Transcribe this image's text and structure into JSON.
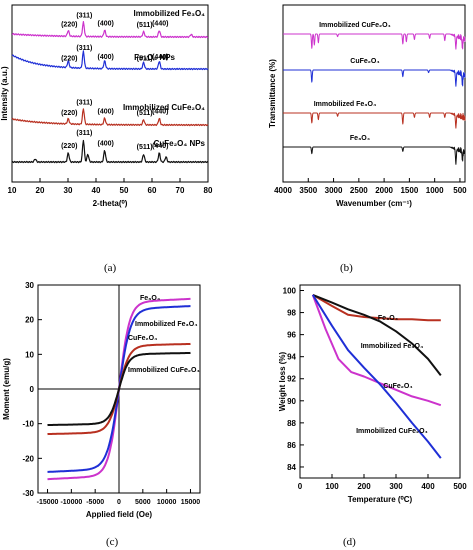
{
  "panel_labels": [
    "(a)",
    "(b)",
    "(c)",
    "(d)"
  ],
  "chart_data": [
    {
      "type": "line",
      "panel": "(a)",
      "xlabel": "2-theta(⁰)",
      "ylabel": "Intensity (a.u.)",
      "xlim": [
        10,
        80
      ],
      "xticks": [
        10,
        20,
        30,
        40,
        50,
        60,
        70,
        80
      ],
      "series": [
        {
          "name": "Immobilized Fe₃O₄",
          "color": "#cc33cc",
          "offset": 3.0,
          "peaks": [
            [
              30.1,
              0.22
            ],
            [
              35.5,
              0.55
            ],
            [
              43.1,
              0.25
            ],
            [
              57.0,
              0.2
            ],
            [
              62.6,
              0.25
            ],
            [
              74.0,
              0.1
            ]
          ],
          "peak_labels": [
            {
              "x": 30.1,
              "t": "(220)"
            },
            {
              "x": 35.5,
              "t": "(311)"
            },
            {
              "x": 43.1,
              "t": "(400)"
            },
            {
              "x": 57.0,
              "t": "(511)"
            },
            {
              "x": 62.6,
              "t": "(440)"
            }
          ]
        },
        {
          "name": "Fe₃O₄ NPs",
          "color": "#1f2fd6",
          "offset": 2.0,
          "peaks": [
            [
              30.1,
              0.25
            ],
            [
              35.5,
              0.65
            ],
            [
              43.1,
              0.3
            ],
            [
              57.0,
              0.25
            ],
            [
              62.6,
              0.3
            ]
          ],
          "peak_labels": [
            {
              "x": 30.1,
              "t": "(220)"
            },
            {
              "x": 35.5,
              "t": "(311)"
            },
            {
              "x": 43.1,
              "t": "(400)"
            },
            {
              "x": 57.0,
              "t": "(511)"
            },
            {
              "x": 62.6,
              "t": "(440)"
            }
          ]
        },
        {
          "name": "Immobilized CuFe₂O₄",
          "color": "#b83020",
          "offset": 1.0,
          "peaks": [
            [
              30.1,
              0.2
            ],
            [
              35.5,
              0.6
            ],
            [
              43.1,
              0.25
            ],
            [
              57.0,
              0.2
            ],
            [
              62.6,
              0.25
            ]
          ],
          "peak_labels": [
            {
              "x": 30.1,
              "t": "(220)"
            },
            {
              "x": 35.5,
              "t": "(311)"
            },
            {
              "x": 43.1,
              "t": "(400)"
            },
            {
              "x": 57.0,
              "t": "(511)"
            },
            {
              "x": 62.6,
              "t": "(440)"
            }
          ]
        },
        {
          "name": "CuFe₂O₄ NPs",
          "color": "#111111",
          "offset": 0.0,
          "peaks": [
            [
              18.3,
              0.12
            ],
            [
              30.1,
              0.35
            ],
            [
              35.5,
              0.85
            ],
            [
              37.1,
              0.3
            ],
            [
              43.1,
              0.45
            ],
            [
              57.0,
              0.3
            ],
            [
              62.6,
              0.35
            ],
            [
              65.0,
              0.2
            ]
          ],
          "peak_labels": [
            {
              "x": 30.1,
              "t": "(220)"
            },
            {
              "x": 35.5,
              "t": "(311)"
            },
            {
              "x": 43.1,
              "t": "(400)"
            },
            {
              "x": 57.0,
              "t": "(511)"
            },
            {
              "x": 62.6,
              "t": "(440)"
            }
          ]
        }
      ]
    },
    {
      "type": "line",
      "panel": "(b)",
      "xlabel": "Wavenumber (cm⁻¹)",
      "ylabel": "Transmittance (%)",
      "xlim": [
        4000,
        400
      ],
      "xticks": [
        4000,
        3500,
        3000,
        2500,
        2000,
        1500,
        1000,
        500
      ],
      "series": [
        {
          "name": "Immobilized CuFe₂O₄",
          "color": "#cc33cc",
          "offset": 3.0,
          "dips": [
            [
              3430,
              0.65
            ],
            [
              3380,
              0.5
            ],
            [
              3300,
              0.4
            ],
            [
              2920,
              0.12
            ],
            [
              1630,
              0.45
            ],
            [
              1560,
              0.35
            ],
            [
              1400,
              0.25
            ],
            [
              1100,
              0.2
            ],
            [
              800,
              0.3
            ],
            [
              580,
              0.55
            ],
            [
              450,
              0.45
            ]
          ]
        },
        {
          "name": "CuFe₂O₄",
          "color": "#1f2fd6",
          "offset": 2.0,
          "dips": [
            [
              3430,
              0.55
            ],
            [
              1630,
              0.3
            ],
            [
              1120,
              0.12
            ],
            [
              580,
              0.6
            ],
            [
              450,
              0.5
            ]
          ]
        },
        {
          "name": "Immobilized Fe₃O₄",
          "color": "#b83020",
          "offset": 1.0,
          "dips": [
            [
              3430,
              0.45
            ],
            [
              3300,
              0.3
            ],
            [
              2920,
              0.15
            ],
            [
              1630,
              0.5
            ],
            [
              1400,
              0.2
            ],
            [
              1100,
              0.2
            ],
            [
              800,
              0.2
            ],
            [
              580,
              0.55
            ]
          ]
        },
        {
          "name": "Fe₃O₄",
          "color": "#111111",
          "offset": 0.0,
          "dips": [
            [
              3430,
              0.3
            ],
            [
              1630,
              0.2
            ],
            [
              580,
              0.65
            ],
            [
              450,
              0.4
            ]
          ]
        }
      ]
    },
    {
      "type": "line",
      "panel": "(c)",
      "xlabel": "Applied field (Oe)",
      "ylabel": "Moment (emu/g)",
      "xlim": [
        -17000,
        17000
      ],
      "ylim": [
        -30,
        30
      ],
      "xticks": [
        -15000,
        -10000,
        -5000,
        0,
        5000,
        10000,
        15000
      ],
      "yticks": [
        -30,
        -20,
        -10,
        0,
        10,
        20,
        30
      ],
      "series": [
        {
          "name": "Fe₃O₄",
          "color": "#cc33cc",
          "ms": 25,
          "k": 0.00055
        },
        {
          "name": "Immobilized Fe₃O₄",
          "color": "#1f2fd6",
          "ms": 23,
          "k": 0.0005
        },
        {
          "name": "CuFe₂O₄",
          "color": "#b83020",
          "ms": 12.5,
          "k": 0.00055
        },
        {
          "name": "Immobilized CuFe₂O₄",
          "color": "#111111",
          "ms": 10,
          "k": 0.0006
        }
      ]
    },
    {
      "type": "line",
      "panel": "(d)",
      "xlabel": "Temperature (⁰C)",
      "ylabel": "Weight loss (%)",
      "xlim": [
        0,
        500
      ],
      "ylim": [
        83,
        100.5
      ],
      "xticks": [
        0,
        100,
        200,
        300,
        400,
        500
      ],
      "yticks": [
        84,
        86,
        88,
        90,
        92,
        94,
        96,
        98,
        100
      ],
      "series": [
        {
          "name": "Fe₃O₄",
          "color": "#b83020",
          "x": [
            40,
            100,
            150,
            200,
            250,
            300,
            350,
            400,
            440
          ],
          "y": [
            99.6,
            98.6,
            97.8,
            97.6,
            97.5,
            97.4,
            97.4,
            97.3,
            97.3
          ]
        },
        {
          "name": "Immobilized Fe₃O₄",
          "color": "#111111",
          "x": [
            40,
            100,
            150,
            200,
            250,
            300,
            350,
            400,
            440
          ],
          "y": [
            99.6,
            98.9,
            98.3,
            97.8,
            97.2,
            96.3,
            95.2,
            93.8,
            92.3
          ]
        },
        {
          "name": "CuFe₂O₄",
          "color": "#cc33cc",
          "x": [
            40,
            80,
            120,
            160,
            200,
            250,
            300,
            350,
            400,
            440
          ],
          "y": [
            99.6,
            96.5,
            93.8,
            92.6,
            92.2,
            91.6,
            91.0,
            90.4,
            90.0,
            89.6
          ]
        },
        {
          "name": "Immobilized CuFe₂O₄",
          "color": "#1f2fd6",
          "x": [
            40,
            100,
            150,
            200,
            250,
            300,
            350,
            400,
            440
          ],
          "y": [
            99.6,
            96.8,
            94.6,
            93.0,
            91.5,
            89.8,
            88.0,
            86.3,
            84.8
          ]
        }
      ]
    }
  ]
}
